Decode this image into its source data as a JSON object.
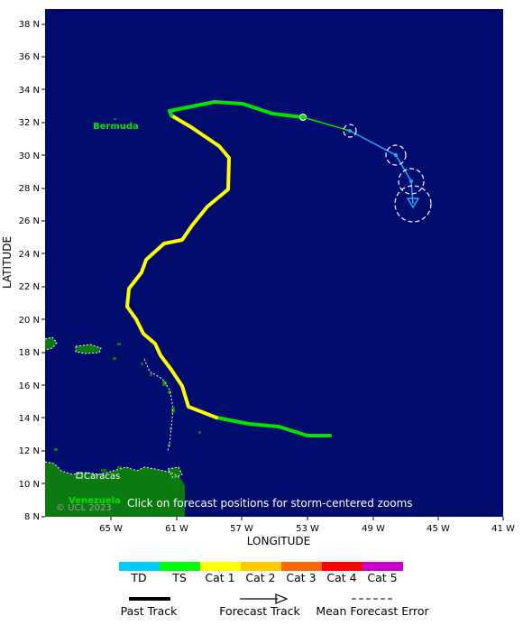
{
  "map": {
    "background_color": "#000b6e",
    "land_color": "#0a7a10",
    "track_past_color_ts": "#00e400",
    "track_past_color_cat1": "#ffff00",
    "forecast_color": "#1ea8ff",
    "click_hint": "Click on forecast positions for storm-centered zooms",
    "copyright": "© UCL 2023",
    "labels": {
      "bermuda": "Bermuda",
      "caracas": "Caracas",
      "venezuela": "Venezuela"
    }
  },
  "axes": {
    "y_label": "LATITUDE",
    "x_label": "LONGITUDE",
    "lat_ticks": [
      "38 N",
      "36 N",
      "34 N",
      "32 N",
      "30 N",
      "28 N",
      "26 N",
      "24 N",
      "22 N",
      "20 N",
      "18 N",
      "16 N",
      "14 N",
      "12 N",
      "10 N",
      "8 N"
    ],
    "lon_ticks": [
      "65 W",
      "61 W",
      "57 W",
      "53 W",
      "49 W",
      "45 W",
      "41 W"
    ]
  },
  "legend": {
    "categories": [
      {
        "label": "TD",
        "color": "#00ccff"
      },
      {
        "label": "TS",
        "color": "#00ff00"
      },
      {
        "label": "Cat 1",
        "color": "#ffff00"
      },
      {
        "label": "Cat 2",
        "color": "#ffcc00"
      },
      {
        "label": "Cat 3",
        "color": "#ff6600"
      },
      {
        "label": "Cat 4",
        "color": "#ff0000"
      },
      {
        "label": "Cat 5",
        "color": "#cc00cc"
      }
    ],
    "past_track": "Past Track",
    "forecast_track": "Forecast Track",
    "mean_error": "Mean Forecast Error"
  }
}
